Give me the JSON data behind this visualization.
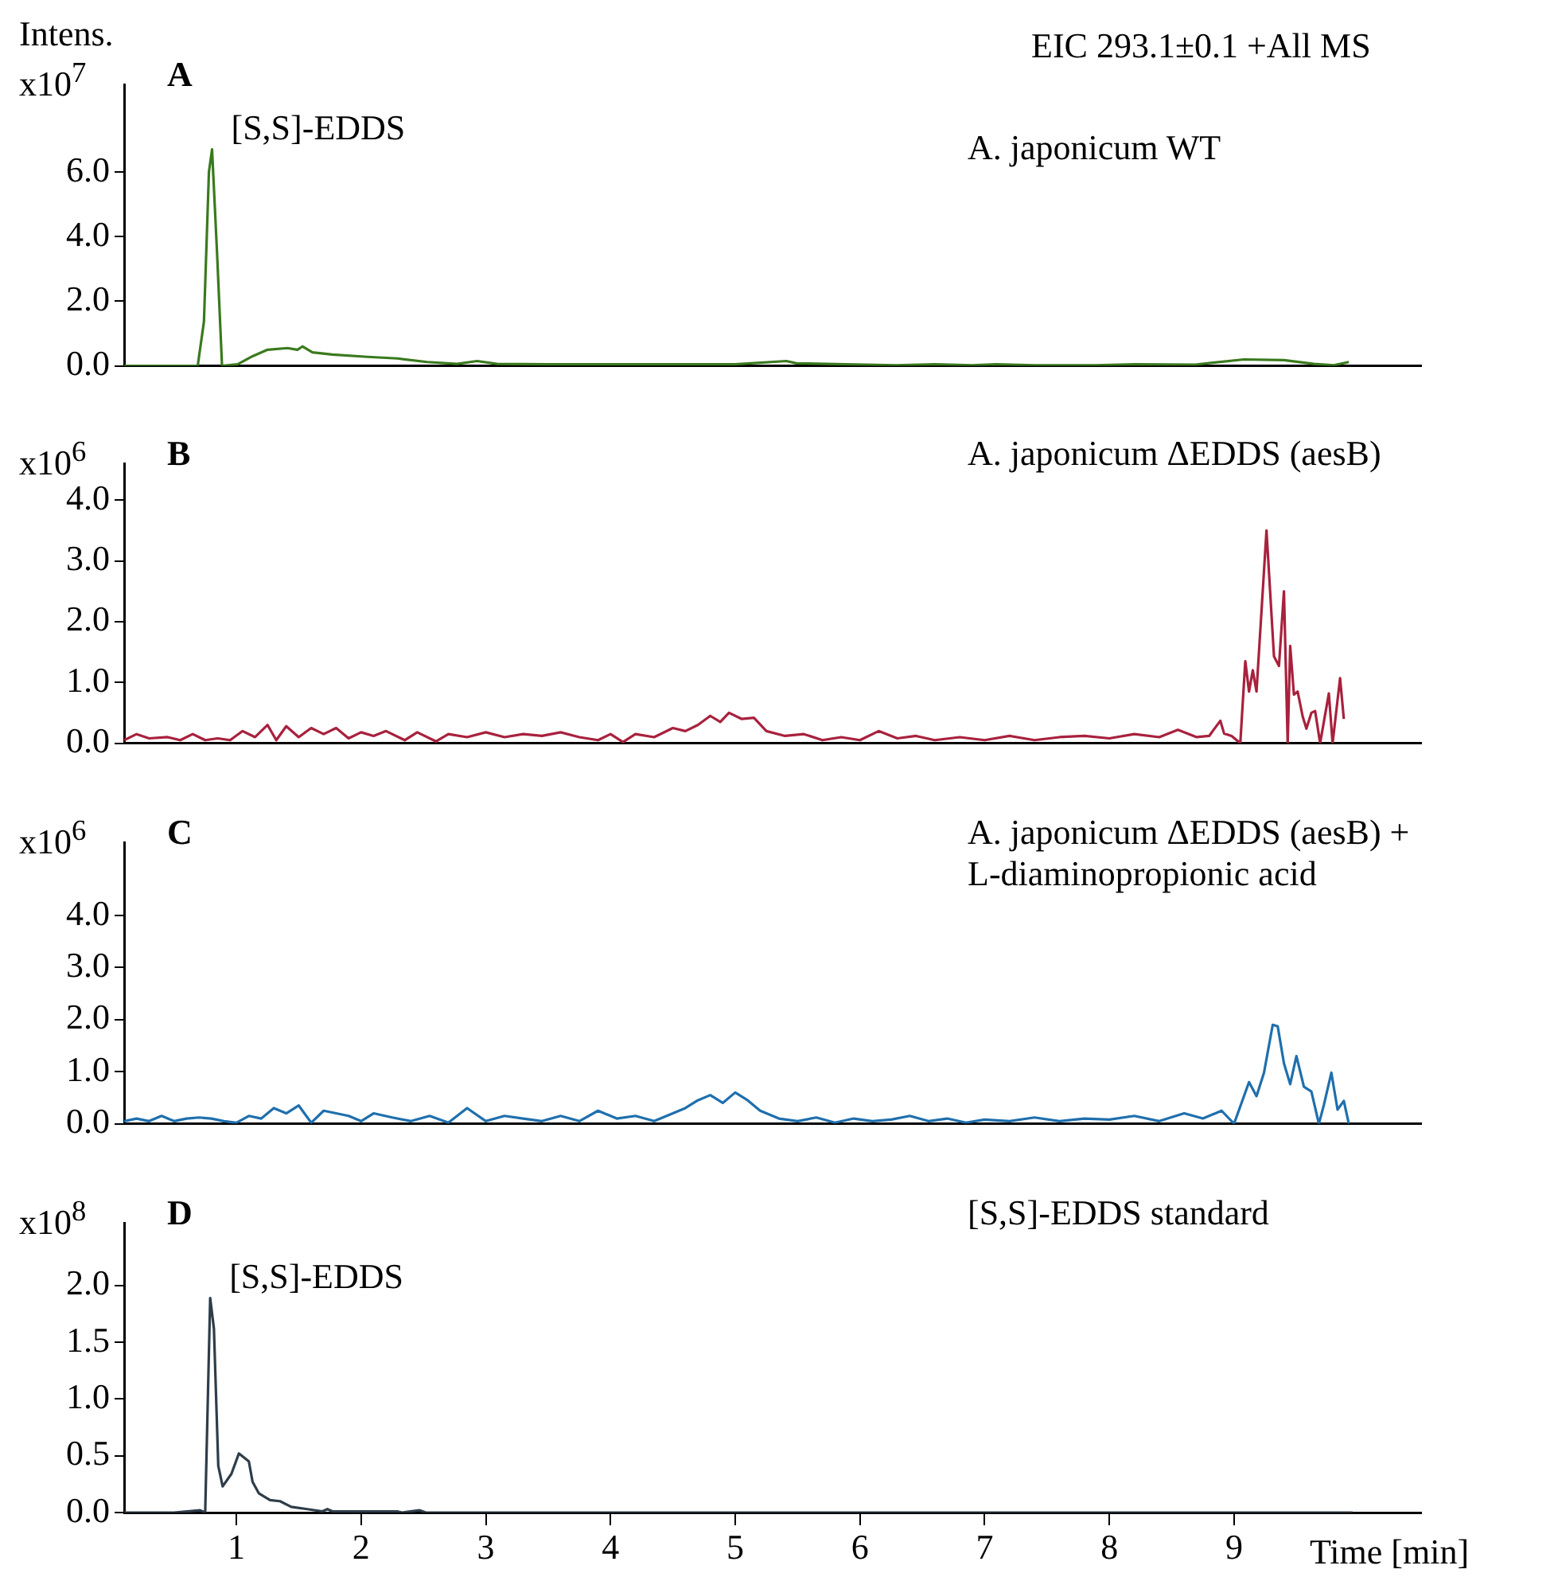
{
  "chart_data": [
    {
      "type": "line",
      "title": "A",
      "subtitle": "A. japonicum WT",
      "ylabel": "Intens. x10$^{7}$",
      "annotations": [
        "EIC 293.1±0.1 +All MS",
        {
          "text": "[S,S]-EDDS",
          "x": 0.805,
          "y": 6.7
        }
      ],
      "xlim": [
        0.1,
        10.5
      ],
      "ylim": [
        0,
        8.7
      ],
      "yticks": [
        {
          "value": 0,
          "label": "0.0"
        },
        {
          "value": 2,
          "label": "2.0"
        },
        {
          "value": 4,
          "label": "4.0"
        },
        {
          "value": 6,
          "label": "6.0"
        }
      ],
      "tick_labels": "y",
      "marker": "none",
      "line_style": "solid",
      "series": [
        {
          "color": "#3a7a1e",
          "x": [
            0.1,
            0.3,
            0.5,
            0.69,
            0.74,
            0.78,
            0.805,
            0.845,
            0.885,
            1.01,
            1.13,
            1.25,
            1.41,
            1.49,
            1.53,
            1.61,
            1.77,
            2.05,
            2.29,
            2.53,
            2.77,
            2.93,
            3.09,
            3.5,
            4.0,
            4.5,
            5.0,
            5.41,
            5.49,
            5.88,
            6.29,
            6.6,
            6.9,
            7.09,
            7.4,
            7.89,
            8.2,
            8.69,
            9.08,
            9.4,
            9.64,
            9.8,
            9.92
          ],
          "values": [
            0,
            0,
            0,
            0,
            1.37,
            6.0,
            6.7,
            3.5,
            0,
            0.05,
            0.3,
            0.5,
            0.55,
            0.5,
            0.6,
            0.42,
            0.35,
            0.28,
            0.23,
            0.12,
            0.06,
            0.15,
            0.06,
            0.05,
            0.05,
            0.05,
            0.05,
            0.15,
            0.08,
            0.05,
            0.02,
            0.05,
            0.02,
            0.05,
            0.02,
            0.02,
            0.05,
            0.04,
            0.2,
            0.18,
            0.06,
            0.02,
            0.12
          ]
        }
      ]
    },
    {
      "type": "line",
      "title": "B",
      "subtitle": "A. japonicum ΔEDDS (aesB)",
      "ylabel": "x10$^{6}$",
      "xlim": [
        0.1,
        10.5
      ],
      "ylim": [
        0,
        4.6
      ],
      "yticks": [
        {
          "value": 0,
          "label": "0.0"
        },
        {
          "value": 1,
          "label": "1.0"
        },
        {
          "value": 2,
          "label": "2.0"
        },
        {
          "value": 3,
          "label": "3.0"
        },
        {
          "value": 4,
          "label": "4.0"
        }
      ],
      "tick_labels": "y",
      "marker": "none",
      "line_style": "solid",
      "series": [
        {
          "color": "#a8213d",
          "x": [
            0.1,
            0.2,
            0.3,
            0.45,
            0.55,
            0.65,
            0.75,
            0.85,
            0.95,
            1.05,
            1.15,
            1.25,
            1.32,
            1.4,
            1.5,
            1.6,
            1.7,
            1.8,
            1.9,
            2.0,
            2.1,
            2.2,
            2.35,
            2.45,
            2.6,
            2.7,
            2.85,
            3.0,
            3.15,
            3.3,
            3.45,
            3.6,
            3.75,
            3.9,
            4.0,
            4.1,
            4.2,
            4.35,
            4.5,
            4.6,
            4.7,
            4.8,
            4.88,
            4.95,
            5.05,
            5.15,
            5.25,
            5.4,
            5.55,
            5.7,
            5.85,
            6.0,
            6.15,
            6.3,
            6.45,
            6.6,
            6.8,
            7.0,
            7.2,
            7.4,
            7.6,
            7.8,
            8.0,
            8.2,
            8.4,
            8.55,
            8.7,
            8.8,
            8.89,
            8.92,
            8.98,
            9.05,
            9.09,
            9.12,
            9.15,
            9.18,
            9.26,
            9.32,
            9.36,
            9.4,
            9.43,
            9.45,
            9.48,
            9.51,
            9.55,
            9.58,
            9.62,
            9.65,
            9.69,
            9.76,
            9.79,
            9.85,
            9.88
          ],
          "values": [
            0.05,
            0.15,
            0.08,
            0.1,
            0.05,
            0.15,
            0.05,
            0.08,
            0.05,
            0.2,
            0.1,
            0.3,
            0.05,
            0.28,
            0.1,
            0.25,
            0.15,
            0.25,
            0.08,
            0.18,
            0.12,
            0.2,
            0.05,
            0.18,
            0.03,
            0.15,
            0.1,
            0.18,
            0.1,
            0.15,
            0.12,
            0.18,
            0.1,
            0.05,
            0.15,
            0.02,
            0.15,
            0.1,
            0.25,
            0.2,
            0.3,
            0.45,
            0.35,
            0.5,
            0.4,
            0.42,
            0.2,
            0.12,
            0.15,
            0.05,
            0.1,
            0.05,
            0.2,
            0.08,
            0.12,
            0.05,
            0.1,
            0.05,
            0.12,
            0.05,
            0.1,
            0.12,
            0.08,
            0.15,
            0.1,
            0.22,
            0.1,
            0.12,
            0.37,
            0.16,
            0.12,
            0,
            1.35,
            0.85,
            1.2,
            0.85,
            3.5,
            1.43,
            1.27,
            2.5,
            0,
            1.6,
            0.8,
            0.85,
            0.44,
            0.24,
            0.5,
            0.53,
            0,
            0.82,
            0,
            1.07,
            0.4
          ]
        }
      ]
    },
    {
      "type": "line",
      "title": "C",
      "subtitle": "A. japonicum ΔEDDS (aesB) +\nL-diaminopropionic acid",
      "ylabel": "x10$^{6}$",
      "xlim": [
        0.1,
        10.5
      ],
      "ylim": [
        0,
        5.4
      ],
      "yticks": [
        {
          "value": 0,
          "label": "0.0"
        },
        {
          "value": 1,
          "label": "1.0"
        },
        {
          "value": 2,
          "label": "2.0"
        },
        {
          "value": 3,
          "label": "3.0"
        },
        {
          "value": 4,
          "label": "4.0"
        }
      ],
      "tick_labels": "y",
      "marker": "none",
      "line_style": "solid",
      "series": [
        {
          "color": "#1f6fad",
          "x": [
            0.1,
            0.2,
            0.3,
            0.4,
            0.5,
            0.6,
            0.7,
            0.8,
            0.9,
            1.0,
            1.1,
            1.2,
            1.3,
            1.4,
            1.5,
            1.6,
            1.7,
            1.8,
            1.9,
            2.0,
            2.1,
            2.25,
            2.4,
            2.55,
            2.7,
            2.85,
            3.0,
            3.15,
            3.3,
            3.45,
            3.6,
            3.75,
            3.9,
            4.05,
            4.2,
            4.35,
            4.5,
            4.6,
            4.7,
            4.8,
            4.9,
            5.0,
            5.1,
            5.2,
            5.35,
            5.5,
            5.65,
            5.8,
            5.95,
            6.1,
            6.25,
            6.4,
            6.55,
            6.7,
            6.85,
            7.0,
            7.2,
            7.4,
            7.6,
            7.8,
            8.0,
            8.2,
            8.4,
            8.6,
            8.75,
            8.9,
            9.0,
            9.12,
            9.18,
            9.24,
            9.31,
            9.35,
            9.4,
            9.45,
            9.5,
            9.56,
            9.62,
            9.68,
            9.72,
            9.78,
            9.83,
            9.88,
            9.92
          ],
          "values": [
            0.05,
            0.1,
            0.05,
            0.15,
            0.05,
            0.1,
            0.12,
            0.1,
            0.05,
            0.02,
            0.15,
            0.1,
            0.3,
            0.2,
            0.35,
            0.02,
            0.25,
            0.2,
            0.15,
            0.05,
            0.2,
            0.12,
            0.05,
            0.15,
            0.02,
            0.3,
            0.05,
            0.15,
            0.1,
            0.05,
            0.15,
            0.05,
            0.25,
            0.1,
            0.15,
            0.05,
            0.2,
            0.3,
            0.45,
            0.55,
            0.4,
            0.6,
            0.45,
            0.25,
            0.1,
            0.05,
            0.12,
            0.02,
            0.1,
            0.05,
            0.08,
            0.15,
            0.05,
            0.1,
            0.02,
            0.08,
            0.05,
            0.12,
            0.05,
            0.1,
            0.08,
            0.15,
            0.05,
            0.2,
            0.1,
            0.25,
            0,
            0.8,
            0.53,
            0.98,
            1.9,
            1.87,
            1.16,
            0.76,
            1.3,
            0.71,
            0.62,
            0,
            0.36,
            0.98,
            0.27,
            0.44,
            0
          ]
        }
      ]
    },
    {
      "type": "line",
      "title": "D",
      "subtitle": "[S,S]-EDDS standard",
      "ylabel": "x10$^{8}$",
      "xlabel": "Time [min]",
      "annotations": [
        {
          "text": "[S,S]-EDDS",
          "x": 0.79,
          "y": 1.89
        }
      ],
      "xlim": [
        0.1,
        10.5
      ],
      "xticks": [
        1,
        2,
        3,
        4,
        5,
        6,
        7,
        8,
        9
      ],
      "ylim": [
        0,
        2.55
      ],
      "yticks": [
        {
          "value": 0,
          "label": "0.0"
        },
        {
          "value": 0.5,
          "label": "0.5"
        },
        {
          "value": 1,
          "label": "1.0"
        },
        {
          "value": 1.5,
          "label": "1.5"
        },
        {
          "value": 2,
          "label": "2.0"
        }
      ],
      "marker": "none",
      "line_style": "solid",
      "series": [
        {
          "color": "#2e3d4a",
          "x": [
            0.1,
            0.5,
            0.71,
            0.75,
            0.79,
            0.82,
            0.855,
            0.89,
            0.96,
            1.02,
            1.1,
            1.13,
            1.18,
            1.27,
            1.35,
            1.44,
            1.57,
            1.69,
            1.73,
            1.77,
            2.29,
            2.33,
            2.47,
            2.52,
            3.5,
            5.0,
            7.0,
            9.0,
            9.95
          ],
          "values": [
            0,
            0,
            0.02,
            0,
            1.89,
            1.62,
            0.41,
            0.23,
            0.34,
            0.52,
            0.45,
            0.27,
            0.17,
            0.11,
            0.1,
            0.05,
            0.03,
            0.01,
            0.03,
            0.01,
            0.01,
            0,
            0.02,
            0,
            0,
            0,
            0,
            0,
            0
          ]
        }
      ]
    }
  ]
}
